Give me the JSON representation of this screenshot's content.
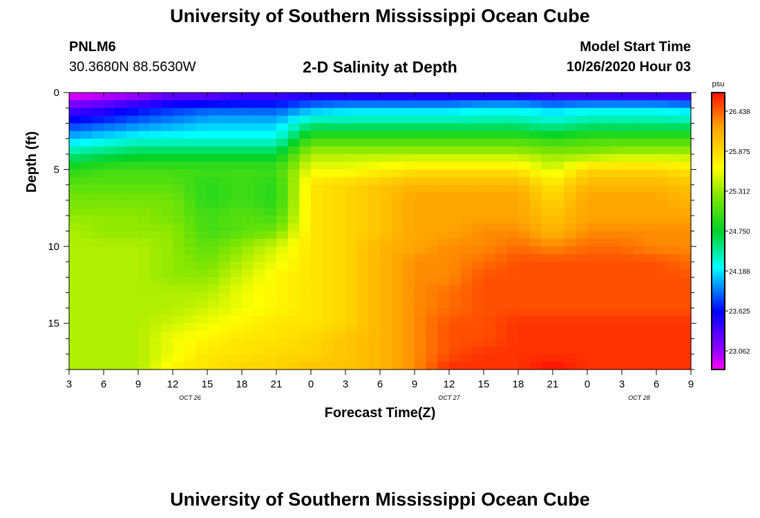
{
  "header": {
    "title_top": "University of Southern Mississippi Ocean Cube",
    "title_bottom": "University of Southern Mississippi Ocean Cube",
    "station_id": "PNLM6",
    "station_coords": "30.3680N 88.5630W",
    "chart_title": "2-D Salinity at Depth",
    "start_label": "Model Start Time",
    "start_value": "10/26/2020 Hour 03"
  },
  "chart_data": {
    "type": "heatmap",
    "title": "2-D Salinity at Depth",
    "xlabel": "Forecast Time(Z)",
    "ylabel": "Depth (ft)",
    "x_range_hours": [
      0,
      54
    ],
    "xlim_hours": [
      0,
      54
    ],
    "ylim_ft": [
      0,
      18
    ],
    "x_ticks": [
      {
        "hour": 0,
        "label": "3"
      },
      {
        "hour": 3,
        "label": "6"
      },
      {
        "hour": 6,
        "label": "9"
      },
      {
        "hour": 9,
        "label": "12"
      },
      {
        "hour": 12,
        "label": "15"
      },
      {
        "hour": 15,
        "label": "18"
      },
      {
        "hour": 18,
        "label": "21"
      },
      {
        "hour": 21,
        "label": "0"
      },
      {
        "hour": 24,
        "label": "3"
      },
      {
        "hour": 27,
        "label": "6"
      },
      {
        "hour": 30,
        "label": "9"
      },
      {
        "hour": 33,
        "label": "12"
      },
      {
        "hour": 36,
        "label": "15"
      },
      {
        "hour": 39,
        "label": "18"
      },
      {
        "hour": 42,
        "label": "21"
      },
      {
        "hour": 45,
        "label": "0"
      },
      {
        "hour": 48,
        "label": "3"
      },
      {
        "hour": 51,
        "label": "6"
      },
      {
        "hour": 54,
        "label": "9"
      }
    ],
    "date_labels": [
      {
        "hour": 10.5,
        "label": "OCT 26"
      },
      {
        "hour": 33,
        "label": "OCT 27"
      },
      {
        "hour": 49.5,
        "label": "OCT 28"
      }
    ],
    "y_ticks": [
      {
        "depth": 0,
        "label": "0"
      },
      {
        "depth": 5,
        "label": "5"
      },
      {
        "depth": 10,
        "label": "10"
      },
      {
        "depth": 15,
        "label": "15"
      }
    ],
    "colorbar": {
      "unit": "psu",
      "min": 22.8,
      "max": 26.7,
      "ticks": [
        26.438,
        25.875,
        25.312,
        24.75,
        24.188,
        23.625,
        23.062
      ],
      "tick_labels": [
        "26.438",
        "25.875",
        "25.312",
        "24.750",
        "24.188",
        "23.625",
        "23.062"
      ]
    },
    "depth_levels_ft": [
      0.25,
      1,
      2,
      3,
      4,
      5,
      6,
      7,
      8,
      9,
      10,
      11,
      12,
      13,
      14,
      15,
      16,
      17,
      17.75
    ],
    "time_steps_hours": [
      0,
      3,
      6,
      9,
      12,
      15,
      18,
      21,
      24,
      27,
      30,
      33,
      36,
      39,
      42,
      45,
      48,
      51,
      54
    ],
    "salinity_psu": [
      [
        22.9,
        23.0,
        23.1,
        23.3,
        23.3,
        23.4,
        23.4,
        23.5,
        23.5,
        23.5,
        23.5,
        23.5,
        23.5,
        23.5,
        23.4,
        23.4,
        23.4,
        23.4,
        23.4
      ],
      [
        23.3,
        23.4,
        23.6,
        23.7,
        23.8,
        23.8,
        23.8,
        24.0,
        24.1,
        24.1,
        24.1,
        24.1,
        24.2,
        24.2,
        24.1,
        24.2,
        24.2,
        24.2,
        24.1
      ],
      [
        23.7,
        23.8,
        23.9,
        24.0,
        24.1,
        24.1,
        24.1,
        24.5,
        24.5,
        24.5,
        24.5,
        24.5,
        24.5,
        24.5,
        24.4,
        24.5,
        24.5,
        24.5,
        24.5
      ],
      [
        24.1,
        24.2,
        24.3,
        24.3,
        24.3,
        24.3,
        24.3,
        25.0,
        25.0,
        25.0,
        25.0,
        25.0,
        25.0,
        25.0,
        24.9,
        25.0,
        25.0,
        25.0,
        25.0
      ],
      [
        24.5,
        24.6,
        24.7,
        24.7,
        24.7,
        24.7,
        24.7,
        25.4,
        25.4,
        25.4,
        25.4,
        25.4,
        25.4,
        25.4,
        25.3,
        25.3,
        25.4,
        25.4,
        25.4
      ],
      [
        24.9,
        25.0,
        25.0,
        25.0,
        25.0,
        25.0,
        25.0,
        25.6,
        25.6,
        25.7,
        25.8,
        25.8,
        25.8,
        25.8,
        25.5,
        25.9,
        25.9,
        25.9,
        25.8
      ],
      [
        25.1,
        25.1,
        25.1,
        25.1,
        24.9,
        25.0,
        24.9,
        25.8,
        25.9,
        26.0,
        26.1,
        26.1,
        26.1,
        26.1,
        25.8,
        26.1,
        26.1,
        26.1,
        26.0
      ],
      [
        25.2,
        25.2,
        25.2,
        25.2,
        24.9,
        25.0,
        24.9,
        25.8,
        25.9,
        26.0,
        26.2,
        26.2,
        26.2,
        26.2,
        25.9,
        26.2,
        26.2,
        26.2,
        26.1
      ],
      [
        25.3,
        25.3,
        25.3,
        25.2,
        25.0,
        25.1,
        25.0,
        25.8,
        25.9,
        26.0,
        26.2,
        26.2,
        26.2,
        26.2,
        26.0,
        26.2,
        26.2,
        26.2,
        26.2
      ],
      [
        25.4,
        25.3,
        25.3,
        25.3,
        25.0,
        25.1,
        25.2,
        25.8,
        25.9,
        26.0,
        26.2,
        26.2,
        26.3,
        26.3,
        26.1,
        26.3,
        26.3,
        26.3,
        26.3
      ],
      [
        25.4,
        25.4,
        25.4,
        25.3,
        25.1,
        25.3,
        25.5,
        25.8,
        25.9,
        26.1,
        26.2,
        26.3,
        26.3,
        26.4,
        26.3,
        26.4,
        26.4,
        26.3,
        26.3
      ],
      [
        25.4,
        25.4,
        25.4,
        25.3,
        25.2,
        25.4,
        25.6,
        25.8,
        25.9,
        26.1,
        26.3,
        26.3,
        26.4,
        26.5,
        26.5,
        26.5,
        26.5,
        26.5,
        26.4
      ],
      [
        25.4,
        25.4,
        25.4,
        25.3,
        25.3,
        25.5,
        25.7,
        25.8,
        25.9,
        26.1,
        26.3,
        26.3,
        26.5,
        26.5,
        26.5,
        26.5,
        26.5,
        26.5,
        26.5
      ],
      [
        25.4,
        25.4,
        25.4,
        25.4,
        25.4,
        25.6,
        25.7,
        25.8,
        25.9,
        26.1,
        26.3,
        26.4,
        26.5,
        26.5,
        26.5,
        26.5,
        26.5,
        26.5,
        26.5
      ],
      [
        25.4,
        25.4,
        25.4,
        25.4,
        25.5,
        25.6,
        25.7,
        25.8,
        25.9,
        26.1,
        26.3,
        26.4,
        26.5,
        26.5,
        26.5,
        26.5,
        26.5,
        26.5,
        26.5
      ],
      [
        25.4,
        25.4,
        25.4,
        25.5,
        25.6,
        25.7,
        25.8,
        25.8,
        25.9,
        26.1,
        26.3,
        26.5,
        26.5,
        26.6,
        26.6,
        26.6,
        26.6,
        26.6,
        26.6
      ],
      [
        25.4,
        25.4,
        25.4,
        25.6,
        25.7,
        25.8,
        25.8,
        25.9,
        26.0,
        26.1,
        26.3,
        26.5,
        26.5,
        26.6,
        26.6,
        26.6,
        26.6,
        26.6,
        26.6
      ],
      [
        25.4,
        25.4,
        25.4,
        25.6,
        25.8,
        25.8,
        25.9,
        25.9,
        26.0,
        26.1,
        26.3,
        26.5,
        26.6,
        26.6,
        26.6,
        26.6,
        26.6,
        26.6,
        26.6
      ],
      [
        25.4,
        25.4,
        25.4,
        25.7,
        25.8,
        25.9,
        25.9,
        26.0,
        26.0,
        26.1,
        26.3,
        26.6,
        26.6,
        26.6,
        26.7,
        26.6,
        26.6,
        26.6,
        26.6
      ]
    ]
  }
}
